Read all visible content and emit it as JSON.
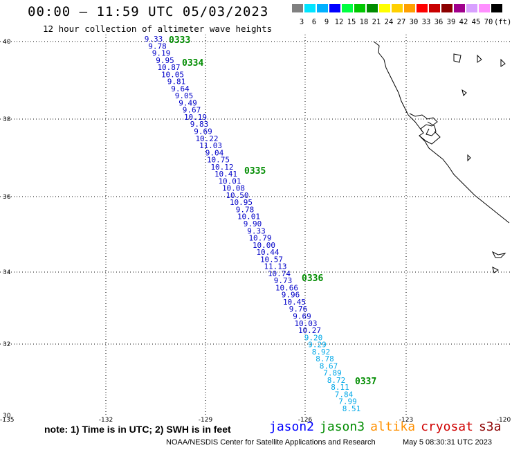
{
  "header": {
    "title": "00:00 – 11:59 UTC 05/03/2023",
    "subtitle": "12 hour collection of altimeter wave heights"
  },
  "legend": {
    "colors": [
      "#808080",
      "#00e5ff",
      "#00b0ff",
      "#0000ff",
      "#00ff40",
      "#00c800",
      "#008c00",
      "#ffff00",
      "#ffd000",
      "#ffa000",
      "#ff0000",
      "#c80000",
      "#8c0000",
      "#a0008c",
      "#d8a0ff",
      "#ff90ff",
      "#000000"
    ],
    "labels": [
      "3",
      "6",
      "9",
      "12",
      "15",
      "18",
      "21",
      "24",
      "27",
      "30",
      "33",
      "36",
      "39",
      "42",
      "45",
      "70",
      "(ft)"
    ]
  },
  "map": {
    "lon_ticks": [
      "-135",
      "-132",
      "-129",
      "-126",
      "-123",
      "-120"
    ],
    "lat_ticks": [
      "40",
      "38",
      "36",
      "34",
      "32",
      "30"
    ],
    "time_labels": [
      "0333",
      "0334",
      "0335",
      "0336",
      "0337"
    ],
    "track_color_dark": "#0000c8",
    "track_color_light": "#00a8e8",
    "time_label_color": "#008c00",
    "wave_heights": [
      "9.33",
      "9.78",
      "9.19",
      "9.95",
      "10.87",
      "10.05",
      "9.81",
      "9.64",
      "9.05",
      "9.49",
      "9.67",
      "10.19",
      "9.83",
      "9.69",
      "10.22",
      "11.03",
      "9.04",
      "10.75",
      "10.12",
      "10.41",
      "10.01",
      "10.08",
      "10.50",
      "10.95",
      "9.78",
      "10.01",
      "9.90",
      "9.33",
      "10.79",
      "10.00",
      "10.44",
      "10.57",
      "11.13",
      "10.74",
      "9.73",
      "10.66",
      "9.96",
      "10.45",
      "9.76",
      "9.69",
      "10.03",
      "10.27",
      "9.20",
      "9.29",
      "8.92",
      "8.78",
      "8.67",
      "7.89",
      "8.72",
      "8.11",
      "7.84",
      "7.99",
      "8.51"
    ]
  },
  "footer": {
    "note": "note: 1) Time is in UTC; 2) SWH is in feet",
    "satellites": [
      {
        "name": "jason2",
        "color": "#0000ff"
      },
      {
        "name": "jason3",
        "color": "#008c00"
      },
      {
        "name": "altika",
        "color": "#ff9000"
      },
      {
        "name": "cryosat",
        "color": "#d00000"
      },
      {
        "name": "s3a",
        "color": "#8c0000"
      }
    ],
    "credit": "NOAA/NESDIS Center for Satellite Applications and Research",
    "timestamp": "May  5 08:30:31 UTC 2023"
  }
}
